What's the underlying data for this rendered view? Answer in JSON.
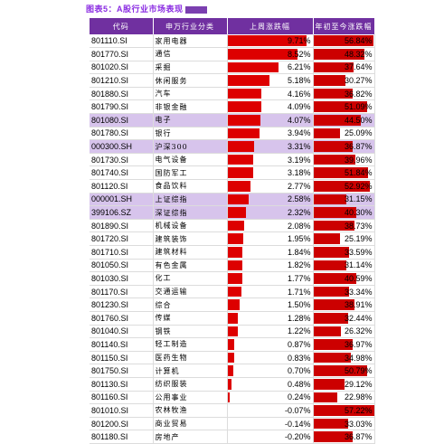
{
  "caption": "图表5：A股行业市场表现",
  "headers": [
    "代码",
    "申万行业分类",
    "上周涨跌幅",
    "年初至今涨跌幅"
  ],
  "colors": {
    "header_bg": "#7030a0",
    "bar": "#dd0000",
    "highlight": "#d7c4ec"
  },
  "rows": [
    {
      "code": "801110.SI",
      "name": "家用电器",
      "week": "9.71%",
      "ytd": "56.84%",
      "w": 9.71,
      "y": 56.84,
      "hl": false
    },
    {
      "code": "801770.SI",
      "name": "通信",
      "week": "8.52%",
      "ytd": "48.32%",
      "w": 8.52,
      "y": 48.32,
      "hl": false
    },
    {
      "code": "801020.SI",
      "name": "采掘",
      "week": "6.21%",
      "ytd": "37.64%",
      "w": 6.21,
      "y": 37.64,
      "hl": false
    },
    {
      "code": "801210.SI",
      "name": "休闲服务",
      "week": "5.18%",
      "ytd": "30.27%",
      "w": 5.18,
      "y": 30.27,
      "hl": false
    },
    {
      "code": "801880.SI",
      "name": "汽车",
      "week": "4.16%",
      "ytd": "36.82%",
      "w": 4.16,
      "y": 36.82,
      "hl": false
    },
    {
      "code": "801790.SI",
      "name": "非银金融",
      "week": "4.09%",
      "ytd": "51.09%",
      "w": 4.09,
      "y": 51.09,
      "hl": false
    },
    {
      "code": "801080.SI",
      "name": "电子",
      "week": "4.07%",
      "ytd": "44.50%",
      "w": 4.07,
      "y": 44.5,
      "hl": true
    },
    {
      "code": "801780.SI",
      "name": "银行",
      "week": "3.94%",
      "ytd": "25.09%",
      "w": 3.94,
      "y": 25.09,
      "hl": false
    },
    {
      "code": "000300.SH",
      "name": "沪深300",
      "week": "3.31%",
      "ytd": "36.87%",
      "w": 3.31,
      "y": 36.87,
      "hl": true
    },
    {
      "code": "801730.SI",
      "name": "电气设备",
      "week": "3.19%",
      "ytd": "39.96%",
      "w": 3.19,
      "y": 39.96,
      "hl": false
    },
    {
      "code": "801740.SI",
      "name": "国防军工",
      "week": "3.18%",
      "ytd": "51.84%",
      "w": 3.18,
      "y": 51.84,
      "hl": false
    },
    {
      "code": "801120.SI",
      "name": "食品饮料",
      "week": "2.77%",
      "ytd": "52.92%",
      "w": 2.77,
      "y": 52.92,
      "hl": false
    },
    {
      "code": "000001.SH",
      "name": "上证综指",
      "week": "2.58%",
      "ytd": "31.15%",
      "w": 2.58,
      "y": 31.15,
      "hl": true
    },
    {
      "code": "399106.SZ",
      "name": "深证综指",
      "week": "2.32%",
      "ytd": "40.30%",
      "w": 2.32,
      "y": 40.3,
      "hl": true
    },
    {
      "code": "801890.SI",
      "name": "机械设备",
      "week": "2.08%",
      "ytd": "38.73%",
      "w": 2.08,
      "y": 38.73,
      "hl": false
    },
    {
      "code": "801720.SI",
      "name": "建筑装饰",
      "week": "1.95%",
      "ytd": "25.19%",
      "w": 1.95,
      "y": 25.19,
      "hl": false
    },
    {
      "code": "801710.SI",
      "name": "建筑材料",
      "week": "1.84%",
      "ytd": "33.59%",
      "w": 1.84,
      "y": 33.59,
      "hl": false
    },
    {
      "code": "801050.SI",
      "name": "有色金属",
      "week": "1.82%",
      "ytd": "31.14%",
      "w": 1.82,
      "y": 31.14,
      "hl": false
    },
    {
      "code": "801030.SI",
      "name": "化工",
      "week": "1.77%",
      "ytd": "40.59%",
      "w": 1.77,
      "y": 40.59,
      "hl": false
    },
    {
      "code": "801170.SI",
      "name": "交通运输",
      "week": "1.71%",
      "ytd": "33.34%",
      "w": 1.71,
      "y": 33.34,
      "hl": false
    },
    {
      "code": "801230.SI",
      "name": "综合",
      "week": "1.50%",
      "ytd": "38.91%",
      "w": 1.5,
      "y": 38.91,
      "hl": false
    },
    {
      "code": "801760.SI",
      "name": "传媒",
      "week": "1.28%",
      "ytd": "32.44%",
      "w": 1.28,
      "y": 32.44,
      "hl": false
    },
    {
      "code": "801040.SI",
      "name": "钢铁",
      "week": "1.22%",
      "ytd": "26.32%",
      "w": 1.22,
      "y": 26.32,
      "hl": false
    },
    {
      "code": "801140.SI",
      "name": "轻工制造",
      "week": "0.87%",
      "ytd": "36.97%",
      "w": 0.87,
      "y": 36.97,
      "hl": false
    },
    {
      "code": "801150.SI",
      "name": "医药生物",
      "week": "0.83%",
      "ytd": "34.98%",
      "w": 0.83,
      "y": 34.98,
      "hl": false
    },
    {
      "code": "801750.SI",
      "name": "计算机",
      "week": "0.70%",
      "ytd": "50.79%",
      "w": 0.7,
      "y": 50.79,
      "hl": false
    },
    {
      "code": "801130.SI",
      "name": "纺织服装",
      "week": "0.48%",
      "ytd": "29.12%",
      "w": 0.48,
      "y": 29.12,
      "hl": false
    },
    {
      "code": "801160.SI",
      "name": "公用事业",
      "week": "0.24%",
      "ytd": "22.98%",
      "w": 0.24,
      "y": 22.98,
      "hl": false
    },
    {
      "code": "801010.SI",
      "name": "农林牧渔",
      "week": "-0.07%",
      "ytd": "57.22%",
      "w": -0.07,
      "y": 57.22,
      "hl": false
    },
    {
      "code": "801200.SI",
      "name": "商业贸易",
      "week": "-0.14%",
      "ytd": "33.03%",
      "w": -0.14,
      "y": 33.03,
      "hl": false
    },
    {
      "code": "801180.SI",
      "name": "房地产",
      "week": "-0.20%",
      "ytd": "36.87%",
      "w": -0.2,
      "y": 36.87,
      "hl": false
    }
  ]
}
